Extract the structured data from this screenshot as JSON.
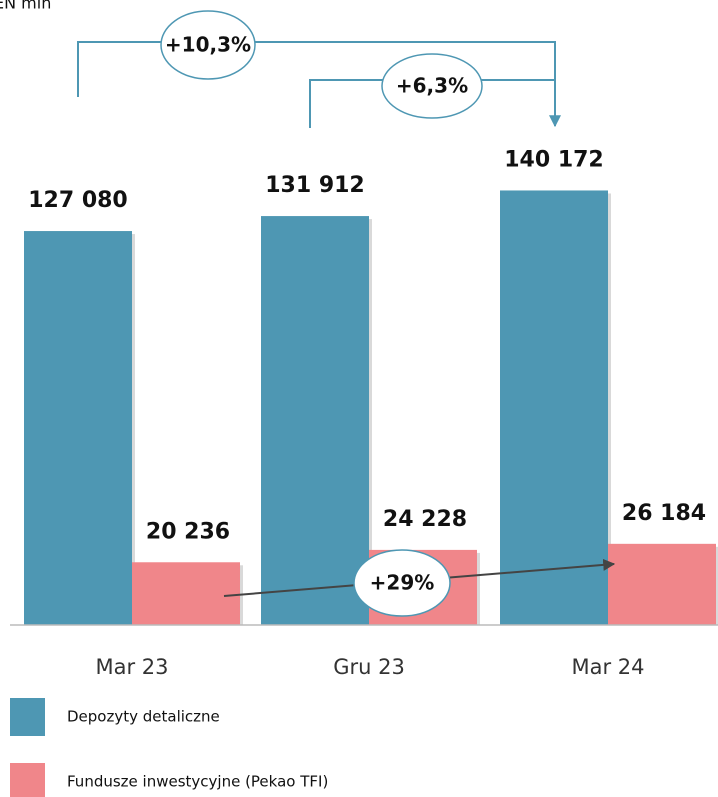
{
  "chart_data": {
    "type": "bar",
    "unit_label": "EN mln",
    "categories": [
      "Mar 23",
      "Gru 23",
      "Mar 24"
    ],
    "series": [
      {
        "name": "Depozyty detaliczne",
        "color": "#4e97b3",
        "values": [
          127080,
          131912,
          140172
        ],
        "value_labels": [
          "127 080",
          "131 912",
          "140 172"
        ]
      },
      {
        "name": "Fundusze inwestycyjne (Pekao TFI)",
        "color": "#f0868a",
        "values": [
          20236,
          24228,
          26184
        ],
        "value_labels": [
          "20 236",
          "24 228",
          "26 184"
        ]
      }
    ],
    "annotations": [
      "+10,3%",
      "+6,3%",
      "+29%"
    ],
    "ylim": [
      0,
      200000
    ],
    "legend": "bottom-left"
  }
}
